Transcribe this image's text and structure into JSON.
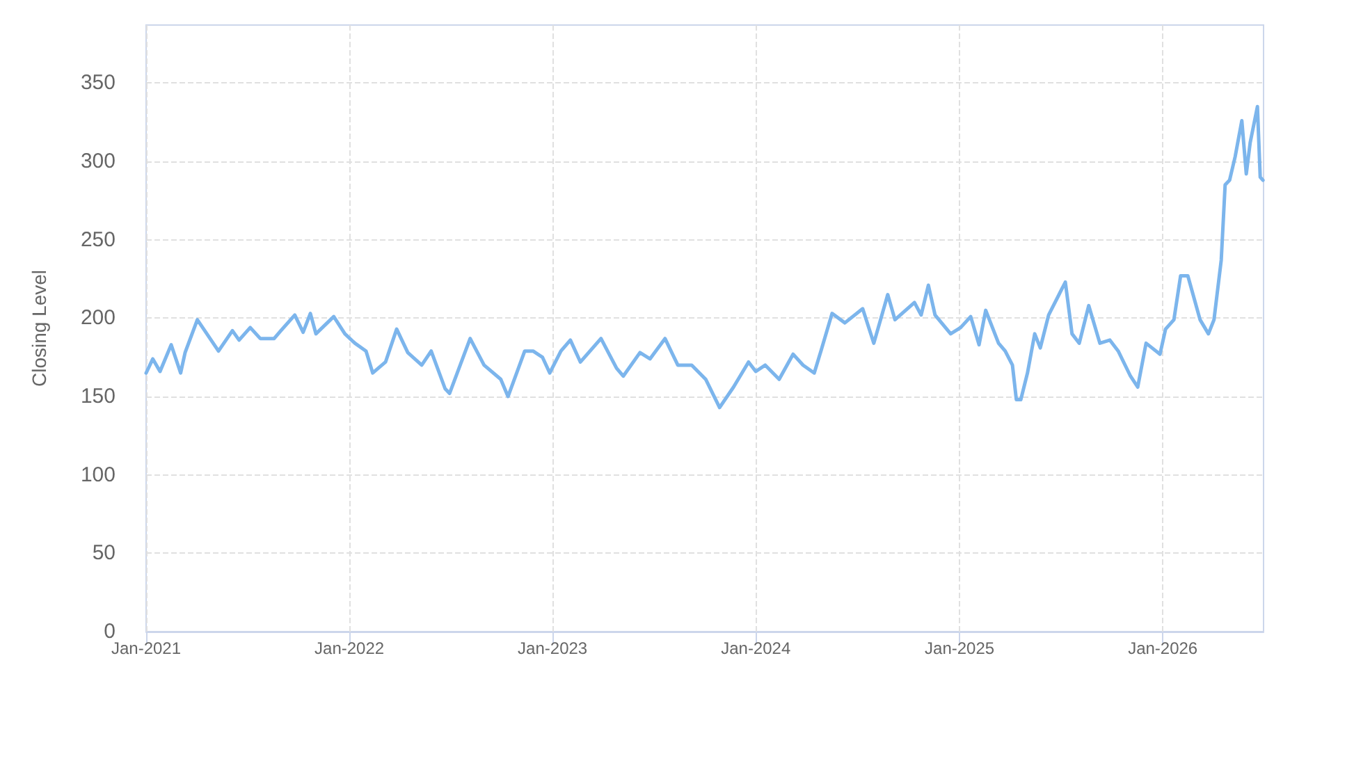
{
  "chart_data": {
    "type": "line",
    "ylabel": "Closing Level",
    "x": [
      "2021-01-01",
      "2021-01-13",
      "2021-01-26",
      "2021-02-15",
      "2021-03-04",
      "2021-03-12",
      "2021-04-03",
      "2021-05-11",
      "2021-06-05",
      "2021-06-17",
      "2021-07-07",
      "2021-07-25",
      "2021-08-19",
      "2021-08-31",
      "2021-09-25",
      "2021-10-10",
      "2021-10-23",
      "2021-11-02",
      "2021-12-04",
      "2021-12-24",
      "2022-01-11",
      "2022-01-31",
      "2022-02-12",
      "2022-03-07",
      "2022-03-27",
      "2022-04-16",
      "2022-05-11",
      "2022-05-28",
      "2022-06-22",
      "2022-06-30",
      "2022-08-06",
      "2022-08-31",
      "2022-09-30",
      "2022-10-13",
      "2022-11-12",
      "2022-11-27",
      "2022-12-14",
      "2022-12-27",
      "2023-01-16",
      "2023-02-02",
      "2023-02-20",
      "2023-03-29",
      "2023-04-26",
      "2023-05-08",
      "2023-06-07",
      "2023-06-25",
      "2023-07-22",
      "2023-08-14",
      "2023-09-08",
      "2023-10-03",
      "2023-10-28",
      "2023-11-22",
      "2023-12-19",
      "2024-01-01",
      "2024-01-18",
      "2024-02-12",
      "2024-03-08",
      "2024-03-26",
      "2024-04-15",
      "2024-04-27",
      "2024-05-17",
      "2024-06-09",
      "2024-07-11",
      "2024-07-31",
      "2024-08-25",
      "2024-09-07",
      "2024-10-12",
      "2024-10-24",
      "2024-11-06",
      "2024-11-18",
      "2024-12-16",
      "2025-01-03",
      "2025-01-21",
      "2025-02-05",
      "2025-02-17",
      "2025-03-12",
      "2025-03-24",
      "2025-04-06",
      "2025-04-13",
      "2025-04-21",
      "2025-05-03",
      "2025-05-16",
      "2025-05-26",
      "2025-06-10",
      "2025-07-10",
      "2025-07-22",
      "2025-08-04",
      "2025-08-21",
      "2025-09-10",
      "2025-09-28",
      "2025-10-13",
      "2025-11-04",
      "2025-11-17",
      "2025-12-02",
      "2025-12-27",
      "2026-01-06",
      "2026-01-21",
      "2026-02-02",
      "2026-02-15",
      "2026-03-09",
      "2026-03-24",
      "2026-04-03",
      "2026-04-16",
      "2026-04-23",
      "2026-05-01",
      "2026-05-11",
      "2026-05-23",
      "2026-05-31",
      "2026-06-07",
      "2026-06-20",
      "2026-06-25",
      "2026-06-30"
    ],
    "series": [
      {
        "color": "#7cb5ec",
        "values": [
          165,
          174,
          166,
          183,
          165,
          178,
          199,
          179,
          192,
          186,
          194,
          187,
          187,
          192,
          202,
          191,
          203,
          190,
          201,
          190,
          184,
          179,
          165,
          172,
          193,
          178,
          170,
          179,
          155,
          152,
          187,
          170,
          161,
          150,
          179,
          179,
          175,
          165,
          179,
          186,
          172,
          187,
          168,
          163,
          178,
          174,
          187,
          170,
          170,
          161,
          143,
          156,
          172,
          166,
          170,
          161,
          177,
          170,
          165,
          179,
          203,
          197,
          206,
          184,
          215,
          199,
          210,
          202,
          221,
          202,
          190,
          194,
          201,
          183,
          205,
          184,
          179,
          170,
          148,
          148,
          165,
          190,
          181,
          202,
          223,
          190,
          184,
          208,
          184,
          186,
          179,
          163,
          156,
          184,
          177,
          193,
          199,
          227,
          227,
          199,
          190,
          199,
          237,
          285,
          288,
          303,
          326,
          292,
          312,
          335,
          290,
          288
        ]
      }
    ],
    "xlim": [
      "2021-01-01",
      "2026-07-01"
    ],
    "xticks": [
      {
        "value": "2021-01-01",
        "label": "Jan-2021"
      },
      {
        "value": "2022-01-01",
        "label": "Jan-2022"
      },
      {
        "value": "2023-01-01",
        "label": "Jan-2023"
      },
      {
        "value": "2024-01-01",
        "label": "Jan-2024"
      },
      {
        "value": "2025-01-01",
        "label": "Jan-2025"
      },
      {
        "value": "2026-01-01",
        "label": "Jan-2026"
      }
    ],
    "ylim": [
      0,
      387
    ],
    "yticks": [
      0,
      50,
      100,
      150,
      200,
      250,
      300,
      350
    ],
    "grid": true,
    "marker": "none",
    "line_style": "solid"
  }
}
